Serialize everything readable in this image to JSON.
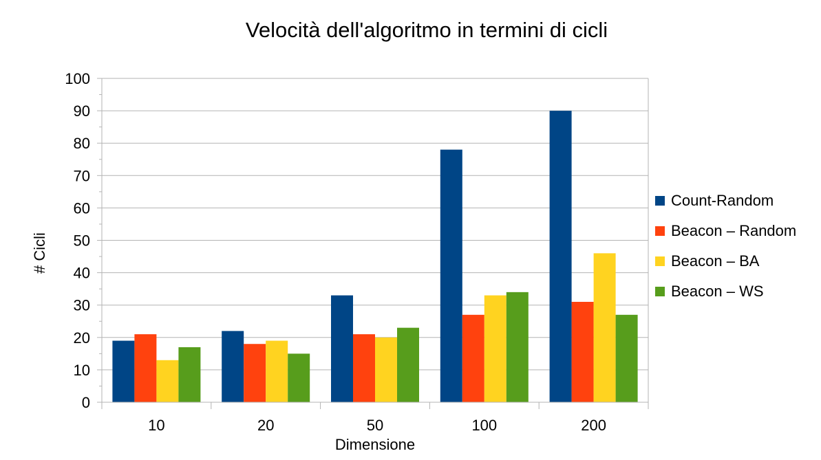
{
  "chart_data": {
    "type": "bar",
    "title": "Velocità dell'algoritmo in termini di cicli",
    "xlabel": "Dimensione",
    "ylabel": "# Cicli",
    "categories": [
      "10",
      "20",
      "50",
      "100",
      "200"
    ],
    "ylim": [
      0,
      100
    ],
    "yticks": [
      0,
      10,
      20,
      30,
      40,
      50,
      60,
      70,
      80,
      90,
      100
    ],
    "grid": true,
    "legend_position": "right",
    "series": [
      {
        "name": "Count-Random",
        "color": "#004586",
        "values": [
          19,
          22,
          33,
          78,
          90
        ]
      },
      {
        "name": "Beacon – Random",
        "color": "#ff420e",
        "values": [
          21,
          18,
          21,
          27,
          31
        ]
      },
      {
        "name": "Beacon – BA",
        "color": "#ffd320",
        "values": [
          13,
          19,
          20,
          33,
          46
        ]
      },
      {
        "name": "Beacon – WS",
        "color": "#579d1c",
        "values": [
          17,
          15,
          23,
          34,
          27
        ]
      }
    ]
  }
}
